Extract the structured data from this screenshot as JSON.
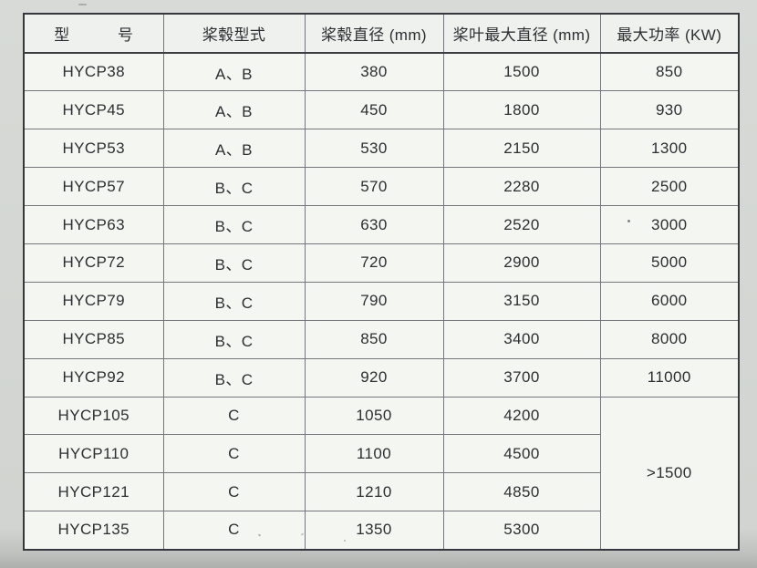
{
  "table": {
    "columns": [
      {
        "label": "型　　　号"
      },
      {
        "label": "桨毂型式"
      },
      {
        "label": "桨毂直径 (mm)"
      },
      {
        "label": "桨叶最大直径 (mm)"
      },
      {
        "label": "最大功率 (KW)"
      }
    ],
    "rows": [
      {
        "model": "HYCP38",
        "hub_type": "A、B",
        "hub_diameter": "380",
        "blade_max_diameter": "1500",
        "max_power": "850"
      },
      {
        "model": "HYCP45",
        "hub_type": "A、B",
        "hub_diameter": "450",
        "blade_max_diameter": "1800",
        "max_power": "930"
      },
      {
        "model": "HYCP53",
        "hub_type": "A、B",
        "hub_diameter": "530",
        "blade_max_diameter": "2150",
        "max_power": "1300"
      },
      {
        "model": "HYCP57",
        "hub_type": "B、C",
        "hub_diameter": "570",
        "blade_max_diameter": "2280",
        "max_power": "2500"
      },
      {
        "model": "HYCP63",
        "hub_type": "B、C",
        "hub_diameter": "630",
        "blade_max_diameter": "2520",
        "max_power": "3000"
      },
      {
        "model": "HYCP72",
        "hub_type": "B、C",
        "hub_diameter": "720",
        "blade_max_diameter": "2900",
        "max_power": "5000"
      },
      {
        "model": "HYCP79",
        "hub_type": "B、C",
        "hub_diameter": "790",
        "blade_max_diameter": "3150",
        "max_power": "6000"
      },
      {
        "model": "HYCP85",
        "hub_type": "B、C",
        "hub_diameter": "850",
        "blade_max_diameter": "3400",
        "max_power": "8000"
      },
      {
        "model": "HYCP92",
        "hub_type": "B、C",
        "hub_diameter": "920",
        "blade_max_diameter": "3700",
        "max_power": "11000"
      },
      {
        "model": "HYCP105",
        "hub_type": "C",
        "hub_diameter": "1050",
        "blade_max_diameter": "4200"
      },
      {
        "model": "HYCP110",
        "hub_type": "C",
        "hub_diameter": "1100",
        "blade_max_diameter": "4500"
      },
      {
        "model": "HYCP121",
        "hub_type": "C",
        "hub_diameter": "1210",
        "blade_max_diameter": "4850"
      },
      {
        "model": "HYCP135",
        "hub_type": "C",
        "hub_diameter": "1350",
        "blade_max_diameter": "5300"
      }
    ],
    "merged_max_power": {
      "label": ">1500",
      "rowspan": 4
    }
  },
  "colors": {
    "page_background": "#d3d6d2",
    "cell_background": "#f4f6f2",
    "header_background": "#eef1ed",
    "grid_line": "#73777b",
    "outer_border": "#34383c",
    "text": "#2c2f32"
  }
}
